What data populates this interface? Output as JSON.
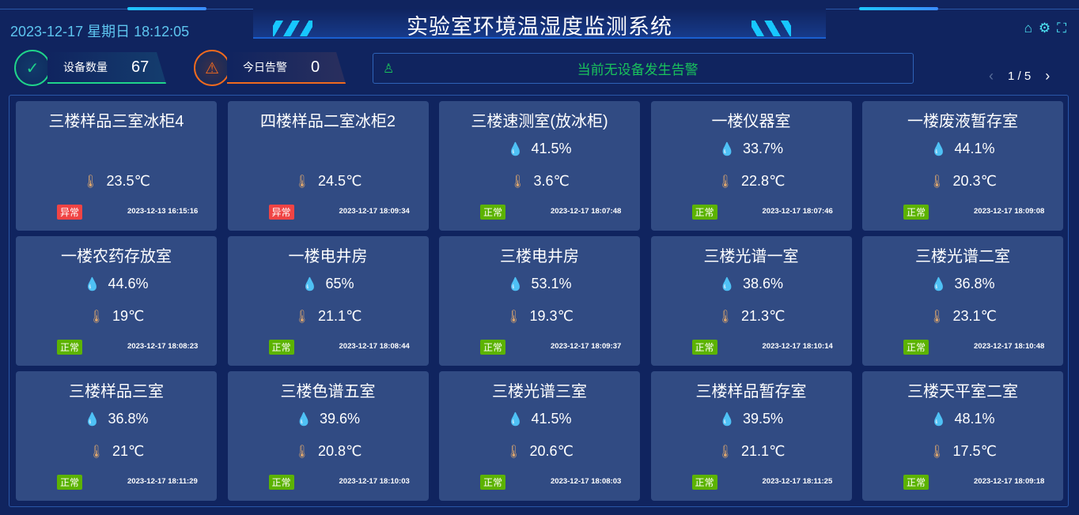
{
  "header": {
    "title": "实验室环境温湿度监测系统",
    "datetime": "2023-12-17 星期日 18:12:05",
    "icons": [
      "home-icon",
      "gear-icon",
      "fullscreen-icon"
    ]
  },
  "stats": {
    "devices_label": "设备数量",
    "devices_value": "67",
    "alarms_label": "今日告警",
    "alarms_value": "0"
  },
  "alarm_bar": {
    "text": "当前无设备发生告警",
    "icon": "alarm-light-icon"
  },
  "pager": {
    "text": "1 / 5",
    "prev": "‹",
    "next": "›"
  },
  "colors": {
    "normal": "#5cb300",
    "abnormal": "#f04444",
    "humidity_icon": "#20d5ee",
    "temp_icon": "#d9a46e"
  },
  "cards": [
    {
      "name": "三楼样品三室冰柜4",
      "humidity": "",
      "temp": "23.5℃",
      "status": "异常",
      "time": "2023-12-13 16:15:16"
    },
    {
      "name": "四楼样品二室冰柜2",
      "humidity": "",
      "temp": "24.5℃",
      "status": "异常",
      "time": "2023-12-17 18:09:34"
    },
    {
      "name": "三楼速测室(放冰柜)",
      "humidity": "41.5%",
      "temp": "3.6℃",
      "status": "正常",
      "time": "2023-12-17 18:07:48"
    },
    {
      "name": "一楼仪器室",
      "humidity": "33.7%",
      "temp": "22.8℃",
      "status": "正常",
      "time": "2023-12-17 18:07:46"
    },
    {
      "name": "一楼废液暂存室",
      "humidity": "44.1%",
      "temp": "20.3℃",
      "status": "正常",
      "time": "2023-12-17 18:09:08"
    },
    {
      "name": "一楼农药存放室",
      "humidity": "44.6%",
      "temp": "19℃",
      "status": "正常",
      "time": "2023-12-17 18:08:23"
    },
    {
      "name": "一楼电井房",
      "humidity": "65%",
      "temp": "21.1℃",
      "status": "正常",
      "time": "2023-12-17 18:08:44"
    },
    {
      "name": "三楼电井房",
      "humidity": "53.1%",
      "temp": "19.3℃",
      "status": "正常",
      "time": "2023-12-17 18:09:37"
    },
    {
      "name": "三楼光谱一室",
      "humidity": "38.6%",
      "temp": "21.3℃",
      "status": "正常",
      "time": "2023-12-17 18:10:14"
    },
    {
      "name": "三楼光谱二室",
      "humidity": "36.8%",
      "temp": "23.1℃",
      "status": "正常",
      "time": "2023-12-17 18:10:48"
    },
    {
      "name": "三楼样品三室",
      "humidity": "36.8%",
      "temp": "21℃",
      "status": "正常",
      "time": "2023-12-17 18:11:29"
    },
    {
      "name": "三楼色谱五室",
      "humidity": "39.6%",
      "temp": "20.8℃",
      "status": "正常",
      "time": "2023-12-17 18:10:03"
    },
    {
      "name": "三楼光谱三室",
      "humidity": "41.5%",
      "temp": "20.6℃",
      "status": "正常",
      "time": "2023-12-17 18:08:03"
    },
    {
      "name": "三楼样品暂存室",
      "humidity": "39.5%",
      "temp": "21.1℃",
      "status": "正常",
      "time": "2023-12-17 18:11:25"
    },
    {
      "name": "三楼天平室二室",
      "humidity": "48.1%",
      "temp": "17.5℃",
      "status": "正常",
      "time": "2023-12-17 18:09:18"
    }
  ]
}
